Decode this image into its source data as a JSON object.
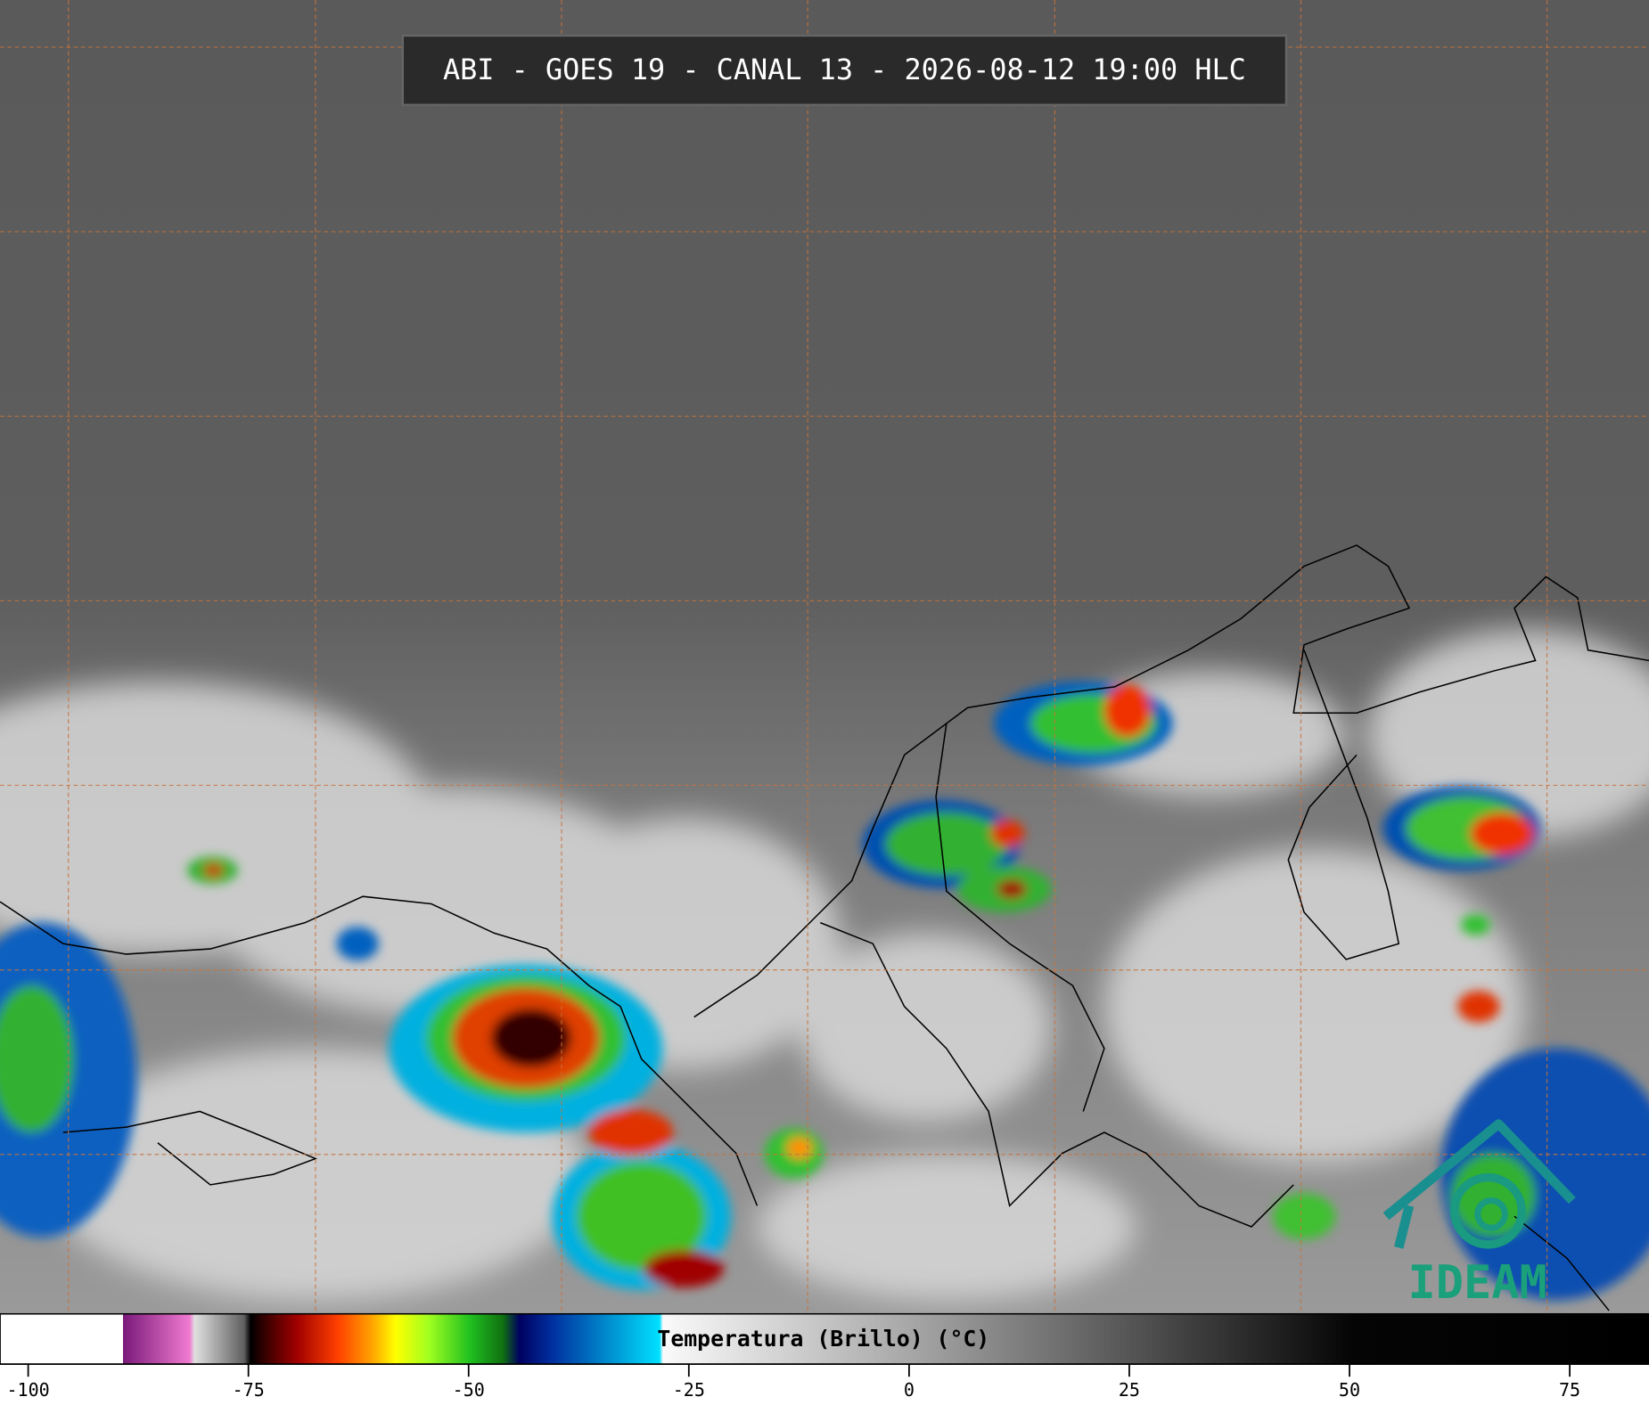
{
  "header": {
    "title": "ABI - GOES 19 - CANAL 13 - 2026-08-12 19:00 HLC"
  },
  "colorbar": {
    "label": "Temperatura (Brillo) (°C)",
    "lim": [
      -103.2,
      84
    ],
    "ticks": [
      -100,
      -75,
      -50,
      -25,
      0,
      25,
      50,
      75
    ]
  },
  "logo": {
    "text": "IDEAM"
  }
}
